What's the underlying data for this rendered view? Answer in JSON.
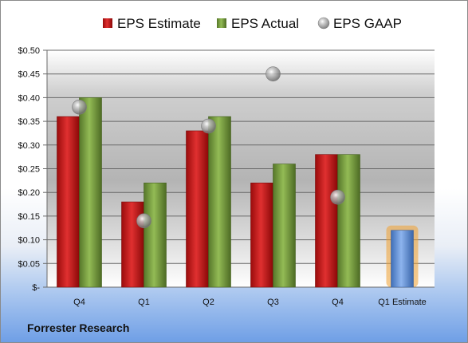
{
  "chart_data": {
    "type": "bar",
    "categories": [
      "Q4",
      "Q1",
      "Q2",
      "Q3",
      "Q4",
      "Q1 Estimate"
    ],
    "series": [
      {
        "name": "EPS Estimate",
        "color": "#d42020",
        "values": [
          0.36,
          0.18,
          0.33,
          0.22,
          0.28,
          null
        ]
      },
      {
        "name": "EPS Actual",
        "color": "#7fa640",
        "values": [
          0.4,
          0.22,
          0.36,
          0.26,
          0.28,
          null
        ]
      },
      {
        "name": "EPS GAAP",
        "color": "#a9a9a9",
        "marker": "sphere",
        "values": [
          0.38,
          0.14,
          0.34,
          0.45,
          0.19,
          null
        ]
      },
      {
        "name": "",
        "color": "#6d9ee0",
        "highlight": "#f0a030",
        "values": [
          null,
          null,
          null,
          null,
          null,
          0.12
        ]
      }
    ],
    "yticks": [
      0,
      0.05,
      0.1,
      0.15,
      0.2,
      0.25,
      0.3,
      0.35,
      0.4,
      0.45,
      0.5
    ],
    "ytick_labels": [
      "$-",
      "$0.05",
      "$0.10",
      "$0.15",
      "$0.20",
      "$0.25",
      "$0.30",
      "$0.35",
      "$0.40",
      "$0.45",
      "$0.50"
    ],
    "ylim": [
      0,
      0.5
    ],
    "grid": true,
    "legend": "top",
    "title": "",
    "xlabel": "",
    "ylabel": ""
  },
  "footer": {
    "company": "Forrester Research"
  }
}
